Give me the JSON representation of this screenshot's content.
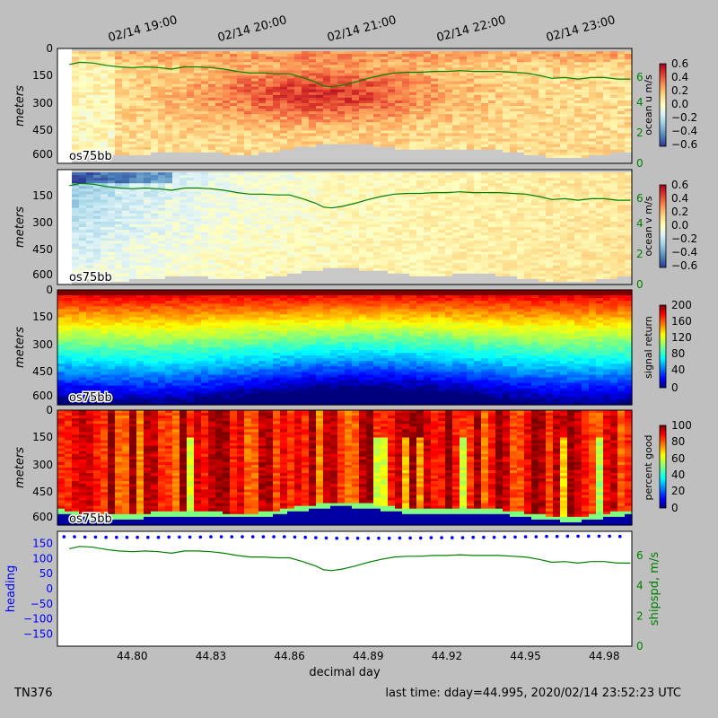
{
  "cruise_label": "TN376",
  "last_time": "last time: dday=44.995,  2020/02/14 23:52:23 UTC",
  "top_time_ticks": [
    "02/14 19:00",
    "02/14 20:00",
    "02/14 21:00",
    "02/14 22:00",
    "02/14 23:00"
  ],
  "colors": {
    "figure_bg": "#bfbfbf",
    "heading": "#0000ff",
    "shipspd": "#008000",
    "no_data": "#c8c8c8"
  },
  "chart_data": [
    {
      "type": "heatmap",
      "name": "ocean-u",
      "instrument": "os75bb",
      "ylabel": "meters",
      "yticks": [
        0,
        150,
        300,
        450,
        600
      ],
      "ylim": [
        630,
        0
      ],
      "colorbar_label": "ocean u m/s",
      "colorbar_ticks": [
        "0.6",
        "0.4",
        "0.2",
        "0.0",
        "−0.2",
        "−0.4",
        "−0.6"
      ],
      "clim": [
        -0.6,
        0.6
      ],
      "colormap": "RdYlBu_r",
      "right_axis_ticks": [
        0,
        2,
        4,
        6
      ],
      "right_axis_lim": [
        0,
        7.5
      ],
      "overlay": "ship speed (m/s)"
    },
    {
      "type": "heatmap",
      "name": "ocean-v",
      "instrument": "os75bb",
      "ylabel": "meters",
      "yticks": [
        150,
        300,
        450,
        600
      ],
      "ylim": [
        630,
        0
      ],
      "colorbar_label": "ocean v m/s",
      "colorbar_ticks": [
        "0.6",
        "0.4",
        "0.2",
        "0.0",
        "−0.2",
        "−0.4",
        "−0.6"
      ],
      "clim": [
        -0.6,
        0.6
      ],
      "colormap": "RdYlBu_r",
      "right_axis_ticks": [
        0,
        2,
        4,
        6
      ],
      "right_axis_lim": [
        0,
        7.5
      ],
      "overlay": "ship speed (m/s)"
    },
    {
      "type": "heatmap",
      "name": "signal-return",
      "instrument": "os75bb",
      "ylabel": "meters",
      "yticks": [
        0,
        150,
        300,
        450,
        600
      ],
      "ylim": [
        630,
        0
      ],
      "colorbar_label": "signal return",
      "colorbar_ticks": [
        "200",
        "160",
        "120",
        "80",
        "40",
        "0"
      ],
      "clim": [
        0,
        200
      ],
      "colormap": "jet"
    },
    {
      "type": "heatmap",
      "name": "percent-good",
      "instrument": "os75bb",
      "ylabel": "meters",
      "yticks": [
        0,
        150,
        300,
        450,
        600
      ],
      "ylim": [
        630,
        0
      ],
      "colorbar_label": "percent good",
      "colorbar_ticks": [
        "100",
        "80",
        "60",
        "40",
        "20",
        "0"
      ],
      "clim": [
        0,
        100
      ],
      "colormap": "jet"
    },
    {
      "type": "line",
      "name": "heading-shipspd",
      "xlabel": "decimal day",
      "xticks": [
        "44.80",
        "44.83",
        "44.86",
        "44.89",
        "44.92",
        "44.95",
        "44.98"
      ],
      "xlim": [
        44.7715,
        44.9905
      ],
      "ylabel": "heading",
      "yticks": [
        150,
        100,
        50,
        0,
        -50,
        -100,
        -150
      ],
      "ylim": [
        -190,
        190
      ],
      "y2label": "shipspd, m/s",
      "y2ticks": [
        0,
        2,
        4,
        6
      ],
      "y2lim": [
        0,
        7.6
      ],
      "series": [
        {
          "name": "heading",
          "style": "dots",
          "x": [
            44.774,
            44.778,
            44.782,
            44.786,
            44.79,
            44.794,
            44.798,
            44.802,
            44.806,
            44.81,
            44.814,
            44.818,
            44.822,
            44.826,
            44.83,
            44.834,
            44.838,
            44.842,
            44.846,
            44.85,
            44.854,
            44.858,
            44.862,
            44.866,
            44.87,
            44.874,
            44.878,
            44.882,
            44.886,
            44.89,
            44.894,
            44.898,
            44.902,
            44.906,
            44.91,
            44.914,
            44.918,
            44.922,
            44.926,
            44.93,
            44.934,
            44.938,
            44.942,
            44.946,
            44.95,
            44.954,
            44.958,
            44.962,
            44.966,
            44.97,
            44.974,
            44.978,
            44.982,
            44.986
          ],
          "y": [
            172,
            172,
            171,
            171,
            170,
            170,
            170,
            170,
            170,
            170,
            171,
            171,
            171,
            171,
            172,
            172,
            172,
            172,
            172,
            172,
            172,
            172,
            171,
            170,
            169,
            168,
            167,
            167,
            167,
            167,
            167,
            167,
            168,
            168,
            168,
            169,
            169,
            169,
            169,
            170,
            170,
            170,
            171,
            171,
            172,
            172,
            173,
            173,
            174,
            174,
            174,
            174,
            174,
            173
          ]
        },
        {
          "name": "shipspd",
          "style": "line",
          "x": [
            44.776,
            44.78,
            44.785,
            44.79,
            44.795,
            44.8,
            44.805,
            44.81,
            44.815,
            44.82,
            44.825,
            44.83,
            44.835,
            44.84,
            44.845,
            44.85,
            44.855,
            44.86,
            44.865,
            44.87,
            44.873,
            44.876,
            44.88,
            44.885,
            44.89,
            44.895,
            44.9,
            44.905,
            44.91,
            44.915,
            44.92,
            44.925,
            44.93,
            44.935,
            44.94,
            44.945,
            44.95,
            44.955,
            44.96,
            44.965,
            44.97,
            44.975,
            44.98,
            44.985,
            44.99
          ],
          "y": [
            6.45,
            6.6,
            6.55,
            6.4,
            6.3,
            6.25,
            6.3,
            6.25,
            6.15,
            6.3,
            6.3,
            6.25,
            6.15,
            6.0,
            5.9,
            5.9,
            5.85,
            5.85,
            5.6,
            5.3,
            5.05,
            5.0,
            5.1,
            5.3,
            5.55,
            5.75,
            5.9,
            5.95,
            5.95,
            6.0,
            6.0,
            6.05,
            6.0,
            6.0,
            6.0,
            5.95,
            5.9,
            5.75,
            5.55,
            5.6,
            5.5,
            5.6,
            5.6,
            5.5,
            5.5
          ]
        }
      ]
    }
  ]
}
